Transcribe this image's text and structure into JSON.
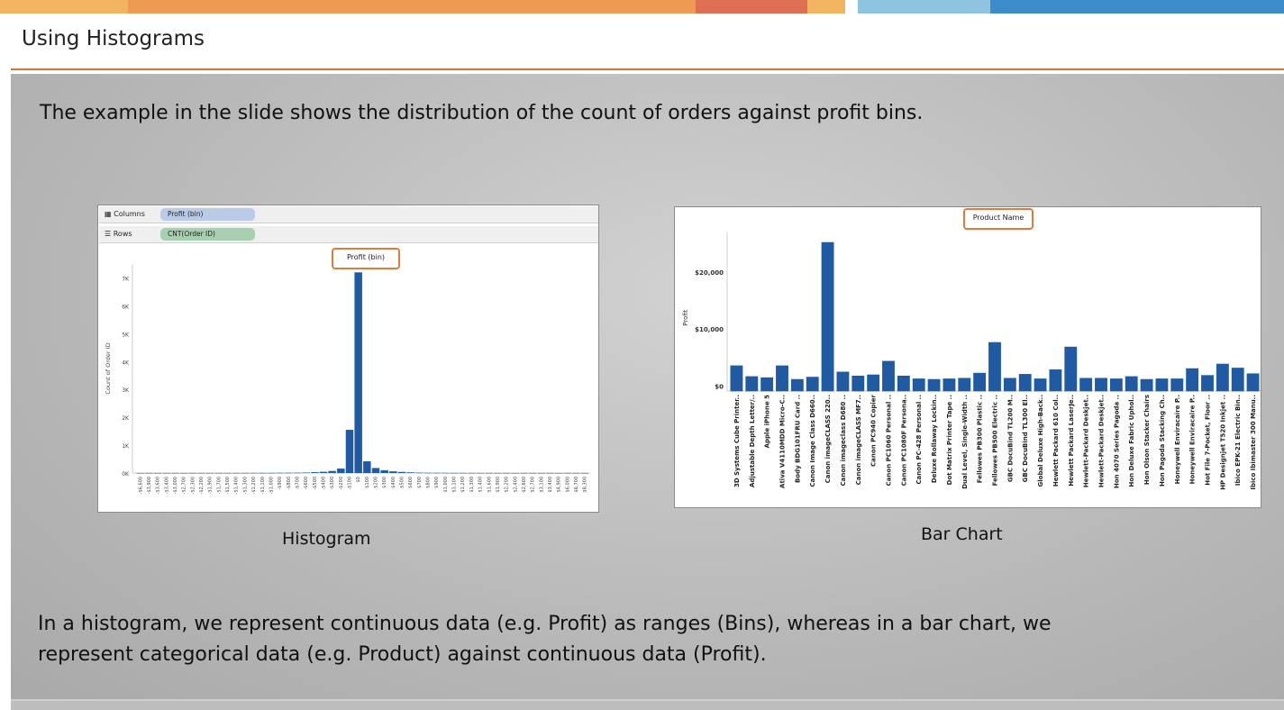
{
  "slide": {
    "title": "Using Histograms",
    "intro": "The example in the slide shows the distribution of the count of orders against profit bins.",
    "paragraph_line1": "In a histogram, we represent continuous data (e.g. Profit) as ranges (Bins), whereas in a bar chart, we",
    "paragraph_line2": "represent categorical data (e.g. Product) against continuous data (Profit).",
    "histogram_caption": "Histogram",
    "barchart_caption": "Bar Chart",
    "colors": {
      "accent": "#d9762b",
      "bar": "#1f5aa3",
      "columns_pill": "#b9cbe6",
      "rows_pill": "#a8cfb0"
    }
  },
  "histogram_panel": {
    "columns_label": "Columns",
    "columns_pill": "Profit (bin)",
    "rows_label": "Rows",
    "rows_pill": "CNT(Order ID)",
    "header": "Profit (bin)",
    "columns_icon": "columns-icon",
    "rows_icon": "rows-icon"
  },
  "barchart_panel": {
    "header": "Product Name"
  },
  "chart_data": [
    {
      "type": "bar",
      "title": "",
      "ylabel": "Count of Order ID",
      "xlabel": "",
      "ylim": [
        0,
        7500
      ],
      "yticks": [
        "0K",
        "1K",
        "2K",
        "3K",
        "4K",
        "5K",
        "6K",
        "7K"
      ],
      "categories": [
        "-$6,600",
        "-$3,900",
        "-$3,600",
        "-$3,400",
        "-$3,000",
        "-$2,700",
        "-$2,300",
        "-$2,200",
        "-$1,900",
        "-$1,700",
        "-$1,500",
        "-$1,400",
        "-$1,300",
        "-$1,200",
        "-$1,100",
        "-$1,000",
        "-$900",
        "-$800",
        "-$700",
        "-$600",
        "-$500",
        "-$400",
        "-$300",
        "-$200",
        "-$100",
        "$0",
        "$100",
        "$200",
        "$300",
        "$400",
        "$500",
        "$600",
        "$700",
        "$800",
        "$900",
        "$1,000",
        "$1,100",
        "$1,200",
        "$1,300",
        "$1,400",
        "$1,600",
        "$1,900",
        "$2,200",
        "$2,400",
        "$2,600",
        "$2,700",
        "$3,100",
        "$3,400",
        "$4,900",
        "$6,000",
        "$6,700",
        "$8,300"
      ],
      "values": [
        2,
        2,
        2,
        2,
        2,
        2,
        2,
        2,
        3,
        3,
        3,
        4,
        4,
        5,
        5,
        6,
        8,
        10,
        12,
        18,
        30,
        45,
        75,
        160,
        1550,
        7200,
        420,
        180,
        100,
        60,
        40,
        25,
        15,
        10,
        8,
        6,
        5,
        4,
        3,
        3,
        2,
        2,
        2,
        2,
        2,
        2,
        2,
        2,
        2,
        2,
        2,
        2
      ]
    },
    {
      "type": "bar",
      "title": "",
      "ylabel": "Profit",
      "xlabel": "",
      "ylim": [
        -900,
        27000
      ],
      "yticks": [
        "$0",
        "$10,000",
        "$20,000"
      ],
      "categories": [
        "3D Systems Cube Printer..",
        "Adjustable Depth Letter/..",
        "Apple iPhone 5",
        "Ativa V4110MDD Micro-C..",
        "Body BDG101FRU Card ..",
        "Canon Image Class D660..",
        "Canon imageCLASS 220..",
        "Canon imageclass D680 ..",
        "Canon imageCLASS MF7..",
        "Canon PC940 Copier",
        "Canon PC1060 Personal ..",
        "Canon PC1080F Persona..",
        "Canon PC-428 Personal ..",
        "Deluxe Rollaway Lockin..",
        "Dot Matrix Printer Tape ..",
        "Dual Level, Single-Width ..",
        "Fellowes PB300 Plastic ..",
        "Fellowes PB500 Electric ..",
        "GBC DocuBind TL200 M..",
        "GBC DocuBind TL300 El..",
        "Global Deluxe High-Back..",
        "Hewlett Packard 610 Col..",
        "Hewlett Packard LaserJe..",
        "Hewlett-Packard Deskjet..",
        "Hewlett-Packard Deskjet..",
        "Hon 4070 Series Pagoda ..",
        "Hon Deluxe Fabric Uphol..",
        "Hon Olson Stacker Chairs",
        "Hon Pagoda Stacking Ch..",
        "Honeywell Enviracaire P..",
        "Honeywell Enviracaire P..",
        "Hot File 7-Pocket, Floor ..",
        "HP Designjet T520 Inkjet ..",
        "Ibico EPK-21 Electric Bin..",
        "Ibico Ibimaster 300 Manu.."
      ],
      "values": [
        3600,
        1700,
        1500,
        3600,
        1200,
        1600,
        25300,
        2500,
        1800,
        2000,
        4400,
        1800,
        1300,
        1200,
        1300,
        1400,
        2300,
        7700,
        1400,
        2100,
        1300,
        2900,
        6900,
        1400,
        1400,
        1300,
        1700,
        1200,
        1300,
        1300,
        3100,
        1900,
        3900,
        3200,
        2200
      ]
    }
  ]
}
